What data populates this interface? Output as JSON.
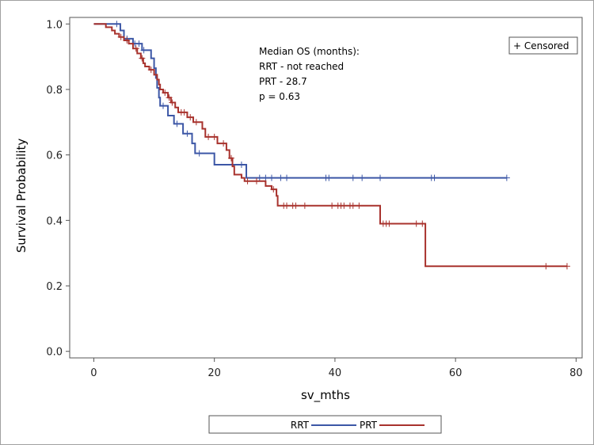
{
  "chart_data": {
    "type": "line",
    "step": true,
    "title": "",
    "xlabel": "sv_mths",
    "ylabel": "Survival Probability",
    "xlim": [
      -4,
      81
    ],
    "ylim": [
      -0.02,
      1.02
    ],
    "x_ticks": [
      0,
      20,
      40,
      60,
      80
    ],
    "y_ticks": [
      0.0,
      0.2,
      0.4,
      0.6,
      0.8,
      1.0
    ],
    "x_tick_labels": [
      "0",
      "20",
      "40",
      "60",
      "80"
    ],
    "y_tick_labels": [
      "0.0",
      "0.2",
      "0.4",
      "0.6",
      "0.8",
      "1.0"
    ],
    "annotation": [
      "Median OS (months):",
      "RRT - not reached",
      "PRT - 28.7",
      "p = 0.63"
    ],
    "censor_legend": "+ Censored",
    "series": [
      {
        "name": "RRT",
        "color": "#3c57a6",
        "steps": [
          [
            0,
            1.0
          ],
          [
            4.4,
            0.98
          ],
          [
            5.0,
            0.955
          ],
          [
            6.5,
            0.94
          ],
          [
            8.0,
            0.92
          ],
          [
            9.5,
            0.895
          ],
          [
            10.0,
            0.865
          ],
          [
            10.3,
            0.835
          ],
          [
            10.5,
            0.805
          ],
          [
            10.8,
            0.775
          ],
          [
            11.0,
            0.75
          ],
          [
            12.3,
            0.72
          ],
          [
            13.3,
            0.695
          ],
          [
            14.8,
            0.665
          ],
          [
            16.3,
            0.635
          ],
          [
            16.8,
            0.605
          ],
          [
            20.0,
            0.57
          ],
          [
            25.3,
            0.53
          ],
          [
            68.5,
            0.53
          ]
        ],
        "censored": [
          3.8,
          5.5,
          6.8,
          7.5,
          8.3,
          11.5,
          13.8,
          15.5,
          17.5,
          24.5,
          27.5,
          28.5,
          29.5,
          31.0,
          32.0,
          38.5,
          39.0,
          43.0,
          44.5,
          47.5,
          56.0,
          56.5,
          68.5
        ]
      },
      {
        "name": "PRT",
        "color": "#a8322d",
        "steps": [
          [
            0,
            1.0
          ],
          [
            2.0,
            0.99
          ],
          [
            3.0,
            0.98
          ],
          [
            3.5,
            0.97
          ],
          [
            4.2,
            0.96
          ],
          [
            5.0,
            0.95
          ],
          [
            5.8,
            0.94
          ],
          [
            6.5,
            0.925
          ],
          [
            7.2,
            0.91
          ],
          [
            7.8,
            0.895
          ],
          [
            8.2,
            0.88
          ],
          [
            8.5,
            0.87
          ],
          [
            9.2,
            0.86
          ],
          [
            10.0,
            0.845
          ],
          [
            10.5,
            0.83
          ],
          [
            10.8,
            0.815
          ],
          [
            11.0,
            0.8
          ],
          [
            11.5,
            0.79
          ],
          [
            12.3,
            0.775
          ],
          [
            12.8,
            0.76
          ],
          [
            13.5,
            0.745
          ],
          [
            14.0,
            0.73
          ],
          [
            15.5,
            0.715
          ],
          [
            16.5,
            0.7
          ],
          [
            18.0,
            0.68
          ],
          [
            18.5,
            0.655
          ],
          [
            20.5,
            0.635
          ],
          [
            22.0,
            0.615
          ],
          [
            22.5,
            0.59
          ],
          [
            23.0,
            0.565
          ],
          [
            23.3,
            0.54
          ],
          [
            24.5,
            0.53
          ],
          [
            25.0,
            0.52
          ],
          [
            28.5,
            0.505
          ],
          [
            29.5,
            0.495
          ],
          [
            30.3,
            0.475
          ],
          [
            30.5,
            0.445
          ],
          [
            47.5,
            0.39
          ],
          [
            55.0,
            0.26
          ],
          [
            78.5,
            0.26
          ]
        ],
        "censored": [
          4.5,
          5.5,
          7.0,
          8.0,
          9.5,
          11.8,
          12.5,
          13.0,
          14.5,
          15.0,
          16.0,
          17.0,
          19.0,
          20.0,
          21.5,
          22.8,
          25.5,
          27.0,
          29.8,
          31.5,
          32.0,
          33.0,
          33.5,
          35.0,
          39.5,
          40.5,
          41.0,
          41.5,
          42.5,
          43.0,
          44.0,
          48.0,
          48.5,
          49.0,
          53.5,
          54.5,
          75.0,
          78.5
        ]
      }
    ],
    "legend_position": "bottom-center"
  }
}
